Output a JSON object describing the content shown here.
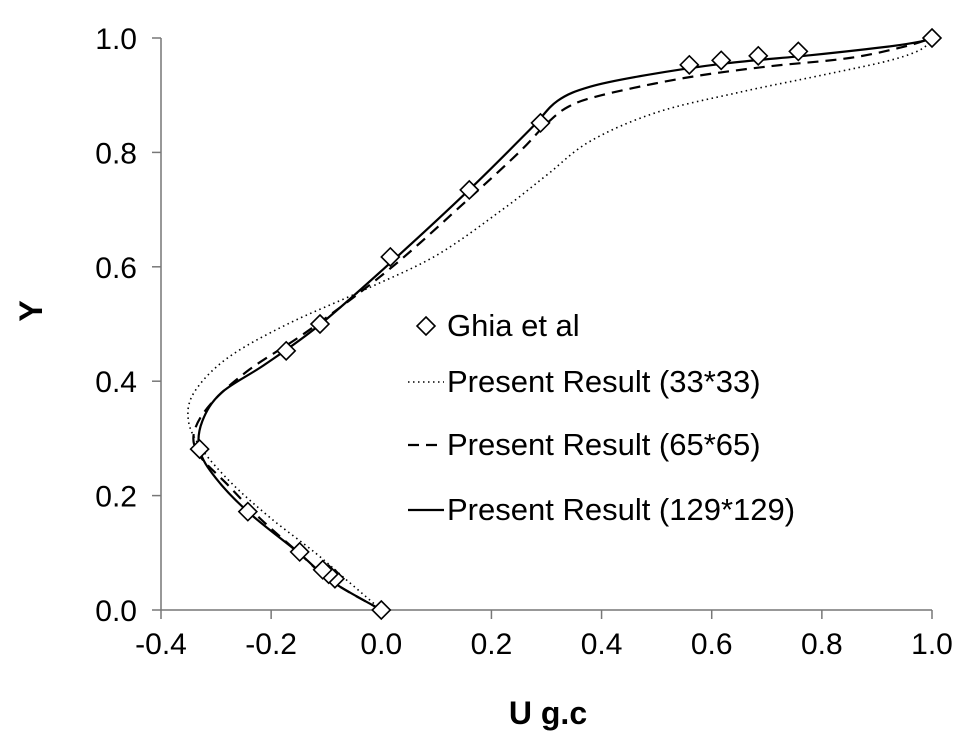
{
  "chart_data": {
    "type": "scatter",
    "title": "",
    "xlabel": "U g.c",
    "ylabel": "Y",
    "xlim": [
      -0.4,
      1.0
    ],
    "ylim": [
      0.0,
      1.0
    ],
    "xticks": [
      "-0.4",
      "-0.2",
      "0.0",
      "0.2",
      "0.4",
      "0.6",
      "0.8",
      "1.0"
    ],
    "yticks": [
      "0.0",
      "0.2",
      "0.4",
      "0.6",
      "0.8",
      "1.0"
    ],
    "grid": false,
    "legend_position": "center-right",
    "series": [
      {
        "name": "Ghia et al",
        "style": "diamond-markers",
        "x": [
          0.0,
          -0.0842,
          -0.0955,
          -0.1064,
          -0.1482,
          -0.2423,
          -0.3299,
          -0.1727,
          -0.1113,
          0.0164,
          0.1598,
          0.2891,
          0.5593,
          0.6172,
          0.6845,
          0.7573,
          1.0
        ],
        "y": [
          0.0,
          0.0547,
          0.0625,
          0.0703,
          0.1016,
          0.1719,
          0.2813,
          0.4531,
          0.5,
          0.6172,
          0.7344,
          0.8516,
          0.9531,
          0.9609,
          0.9688,
          0.9766,
          1.0
        ]
      },
      {
        "name": "Present Result (33*33)",
        "style": "dotted",
        "x": [
          0.0,
          -0.06,
          -0.12,
          -0.2,
          -0.27,
          -0.325,
          -0.35,
          -0.34,
          -0.28,
          -0.17,
          -0.03,
          0.1,
          0.22,
          0.3,
          0.38,
          0.5,
          0.65,
          0.8,
          0.92,
          0.98,
          1.0
        ],
        "y": [
          0.0,
          0.05,
          0.1,
          0.16,
          0.22,
          0.28,
          0.33,
          0.38,
          0.44,
          0.5,
          0.56,
          0.62,
          0.7,
          0.76,
          0.82,
          0.87,
          0.905,
          0.935,
          0.96,
          0.98,
          1.0
        ]
      },
      {
        "name": "Present Result (65*65)",
        "style": "dashed",
        "x": [
          0.0,
          -0.09,
          -0.15,
          -0.22,
          -0.28,
          -0.33,
          -0.34,
          -0.31,
          -0.24,
          -0.13,
          0.02,
          0.16,
          0.25,
          0.3,
          0.34,
          0.4,
          0.55,
          0.7,
          0.85,
          0.95,
          1.0
        ],
        "y": [
          0.0,
          0.05,
          0.1,
          0.16,
          0.22,
          0.27,
          0.31,
          0.36,
          0.42,
          0.49,
          0.6,
          0.72,
          0.8,
          0.85,
          0.88,
          0.9,
          0.93,
          0.95,
          0.965,
          0.985,
          1.0
        ]
      },
      {
        "name": "Present Result (129*129)",
        "style": "solid",
        "x": [
          0.0,
          -0.09,
          -0.15,
          -0.24,
          -0.3,
          -0.33,
          -0.325,
          -0.29,
          -0.21,
          -0.11,
          0.02,
          0.16,
          0.27,
          0.32,
          0.38,
          0.48,
          0.62,
          0.78,
          0.92,
          0.98,
          1.0
        ],
        "y": [
          0.0,
          0.05,
          0.1,
          0.17,
          0.23,
          0.28,
          0.33,
          0.38,
          0.43,
          0.5,
          0.61,
          0.735,
          0.84,
          0.89,
          0.915,
          0.935,
          0.955,
          0.97,
          0.985,
          0.994,
          1.0
        ]
      }
    ]
  }
}
